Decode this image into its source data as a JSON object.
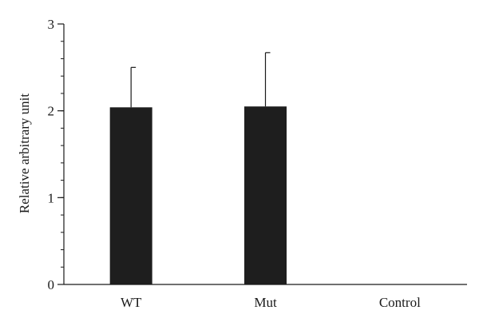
{
  "chart_data": {
    "type": "bar",
    "title": "",
    "xlabel": "",
    "ylabel": "Relative arbitrary unit",
    "categories": [
      "WT",
      "Mut",
      "Control"
    ],
    "values": [
      2.04,
      2.05,
      0
    ],
    "error_upper": [
      2.5,
      2.67,
      0
    ],
    "ylim": [
      0,
      3
    ],
    "yticks": [
      0,
      1,
      2,
      3
    ],
    "minor_tick_step": 0.2,
    "bar_color": "#1e1e1e",
    "grid": false,
    "legend": "none"
  }
}
